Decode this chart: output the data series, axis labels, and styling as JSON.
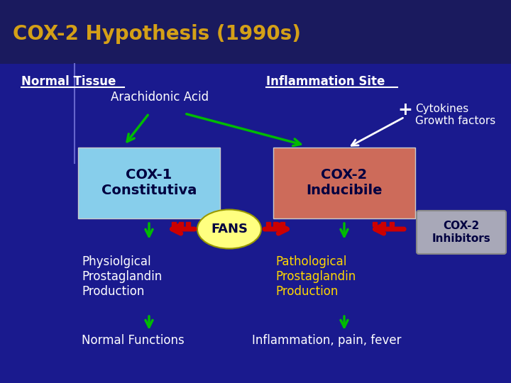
{
  "title": "COX-2 Hypothesis (1990s)",
  "title_color": "#D4A017",
  "title_fontsize": 20,
  "bg_top_color": "#1a1a5e",
  "bg_bottom_color": "#1a1a8e",
  "normal_tissue_label": "Normal Tissue",
  "inflammation_site_label": "Inflammation Site",
  "arachidonic_acid_label": "Arachidonic Acid",
  "cytokines_label": "Cytokines\nGrowth factors",
  "cox1_label": "COX-1\nConstitutiva",
  "cox2_label": "COX-2\nInducibile",
  "fans_label": "FANS",
  "cox2_inhibitors_label": "COX-2\nInhibitors",
  "physio_label": "Physiolgical\nProstaglandin\nProduction",
  "patho_label": "Pathological\nProstaglandin\nProduction",
  "normal_func_label": "Normal Functions",
  "inflam_label": "Inflammation, pain, fever",
  "cox1_box_color": "#87CEEB",
  "cox2_box_color": "#CD6B5A",
  "fans_color": "#FFFF80",
  "cox2_inh_color": "#A8A8B8",
  "arrow_green": "#00BB00",
  "arrow_red": "#CC0000",
  "white": "#ffffff",
  "yellow": "#FFD700",
  "dark_navy": "#000040",
  "label_color": "#ffffff",
  "divider_color": "#6666cc"
}
